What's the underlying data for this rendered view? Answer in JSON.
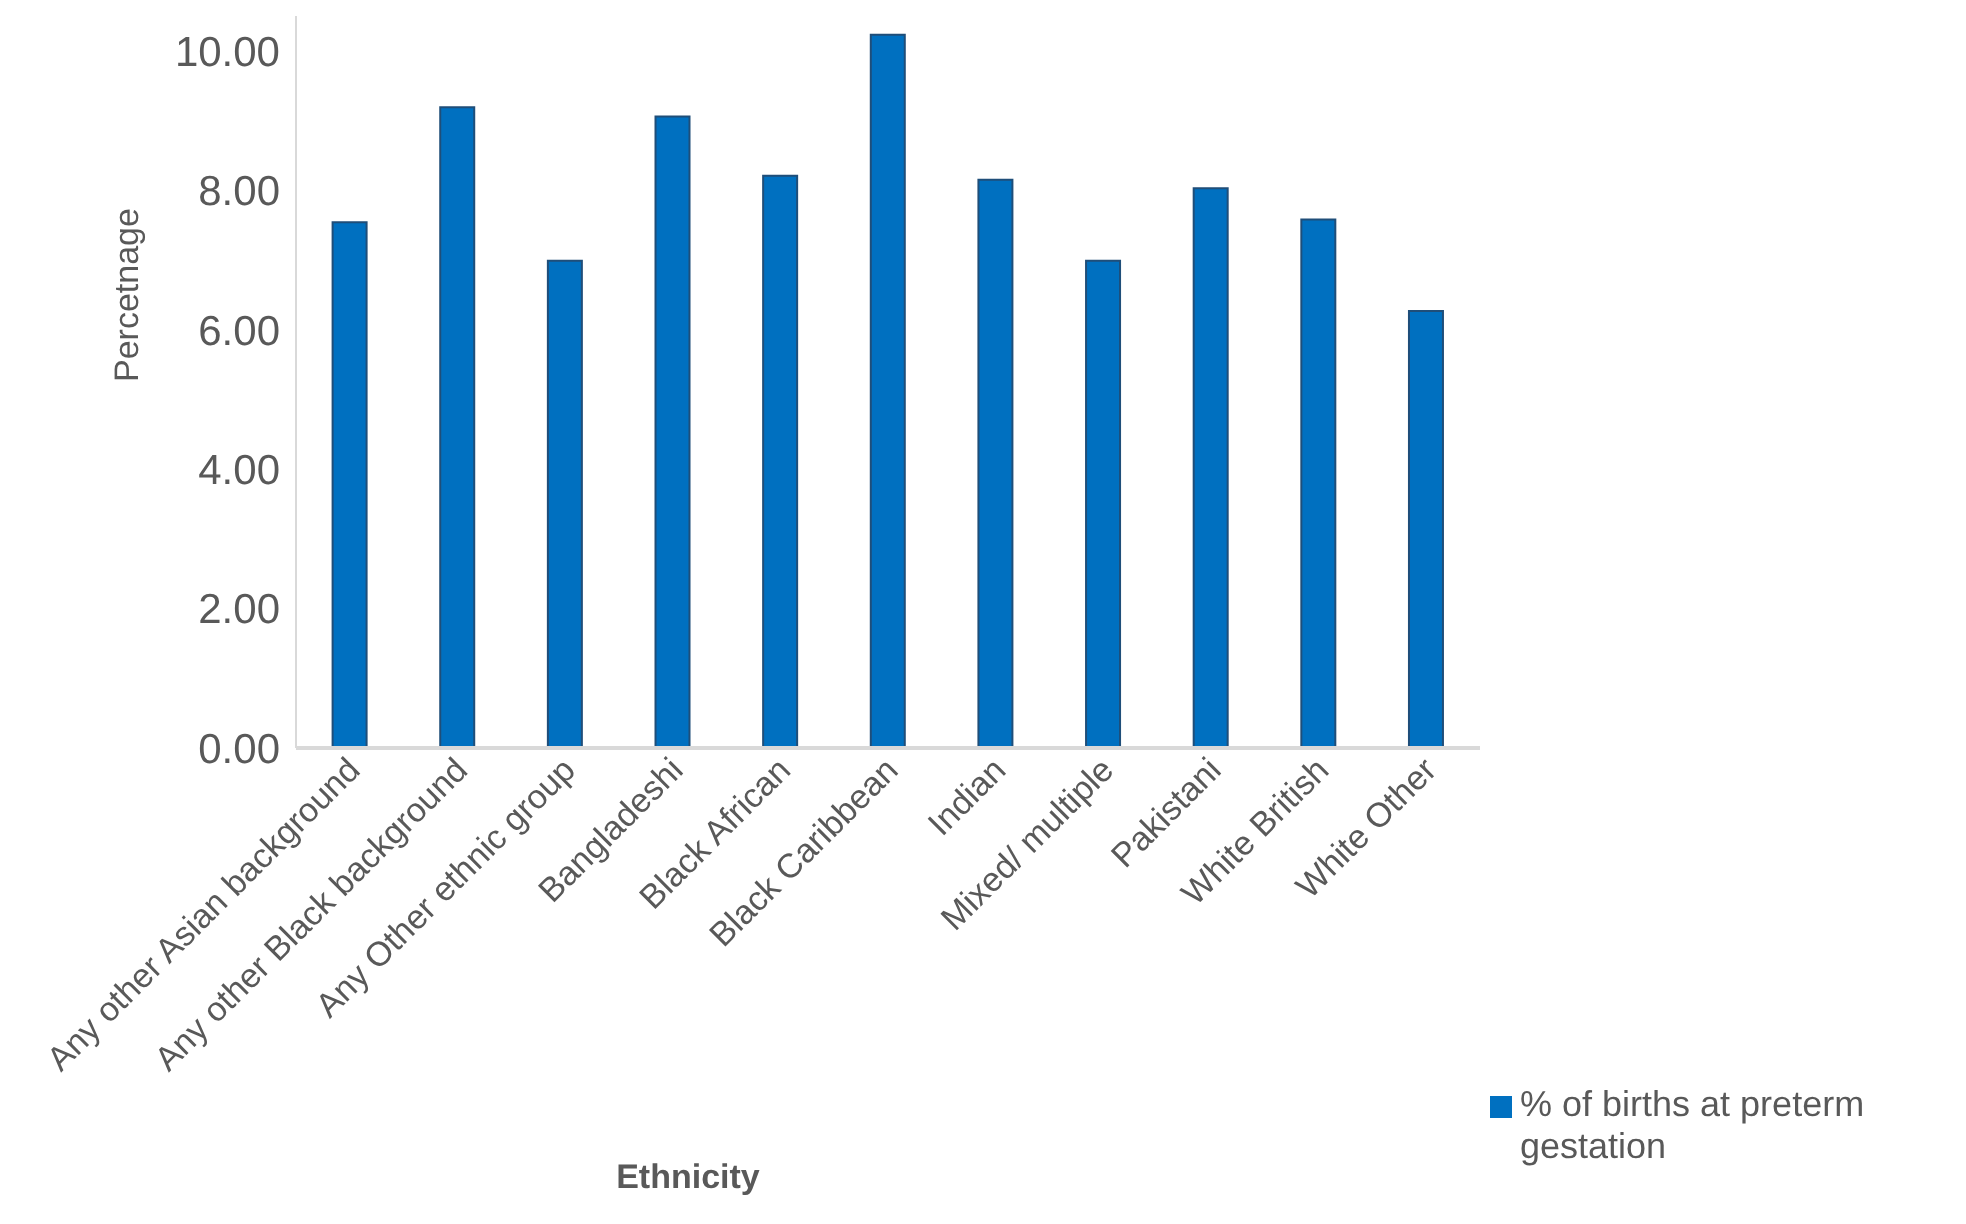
{
  "chart_data": {
    "type": "bar",
    "xlabel": "Ethnicity",
    "ylabel": "Percetnage",
    "categories": [
      "Any other Asian background",
      "Any other Black background",
      "Any Other ethnic group",
      "Bangladeshi",
      "Black African",
      "Black Caribbean",
      "Indian",
      "Mixed/ multiple",
      "Pakistani",
      "White British",
      "White Other"
    ],
    "series": [
      {
        "name": "% of births at preterm gestation",
        "color": "#0070c0",
        "values": [
          7.54,
          9.19,
          6.99,
          9.06,
          8.21,
          10.23,
          8.15,
          6.99,
          8.03,
          7.58,
          6.27
        ]
      }
    ],
    "ylim": [
      0,
      10.5
    ],
    "yticks": [
      {
        "value": 0,
        "label": "0.00"
      },
      {
        "value": 2,
        "label": "2.00"
      },
      {
        "value": 4,
        "label": "4.00"
      },
      {
        "value": 6,
        "label": "6.00"
      },
      {
        "value": 8,
        "label": "8.00"
      },
      {
        "value": 10,
        "label": "10.00"
      }
    ],
    "grid": false,
    "legend": "bottom right"
  }
}
